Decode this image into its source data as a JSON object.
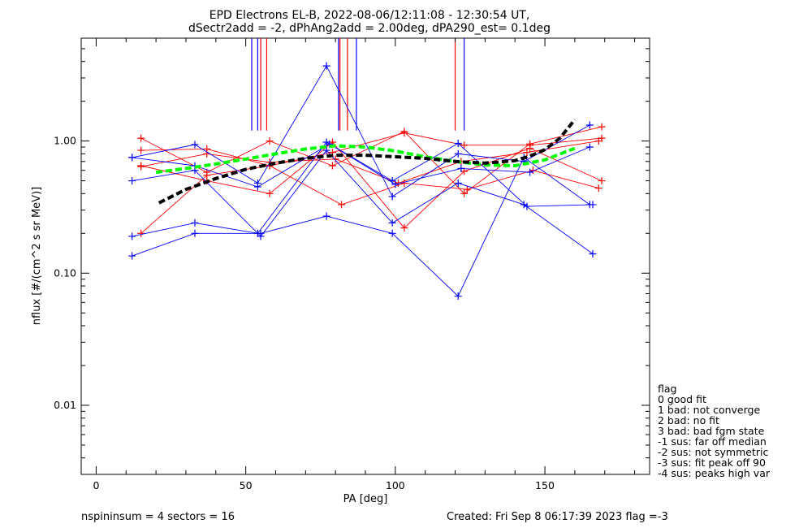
{
  "chart_data": {
    "type": "scatter",
    "title": "EPD Electrons EL-B, 2022-08-06/12:11:08 - 12:30:54 UT,",
    "subtitle": "dSectr2add = -2, dPhAng2add = 2.00deg, dPA290_est=   0.1deg",
    "xlabel": "PA [deg]",
    "ylabel": "nflux [#/(cm^2 s sr MeV)]",
    "xlim": [
      -5,
      185
    ],
    "ylim": [
      0.003,
      6.0
    ],
    "yscale": "log",
    "x_ticks": [
      0,
      50,
      100,
      150
    ],
    "x_tick_labels": [
      "0",
      "50",
      "100",
      "150"
    ],
    "y_ticks": [
      0.01,
      0.1,
      1.0
    ],
    "y_tick_labels": [
      "0.01",
      "0.10",
      "1.00"
    ],
    "colors": {
      "red": "#ff0000",
      "blue": "#0000ff",
      "green": "#00ff00",
      "black": "#000000"
    },
    "series": [
      {
        "color": "red",
        "style": "line-plus",
        "x": [
          15,
          37,
          58,
          79,
          103,
          123,
          145,
          169
        ],
        "y": [
          0.85,
          0.87,
          0.65,
          0.82,
          1.15,
          0.93,
          0.93,
          1.05
        ]
      },
      {
        "color": "red",
        "style": "line-plus",
        "x": [
          15,
          37,
          58,
          79,
          103,
          123,
          145,
          169
        ],
        "y": [
          1.05,
          0.58,
          1.0,
          0.65,
          1.18,
          0.4,
          0.95,
          1.28
        ]
      },
      {
        "color": "red",
        "style": "line-plus",
        "x": [
          15,
          37,
          58,
          79,
          103,
          123,
          145,
          169
        ],
        "y": [
          0.65,
          0.5,
          0.4,
          0.98,
          0.22,
          0.59,
          0.88,
          0.5
        ]
      },
      {
        "color": "red",
        "style": "line-plus",
        "x": [
          15,
          37,
          58,
          82,
          103,
          124,
          146,
          168
        ],
        "y": [
          0.2,
          0.55,
          0.65,
          0.33,
          0.48,
          0.43,
          0.6,
          0.44
        ]
      },
      {
        "color": "red",
        "style": "line-plus",
        "x": [
          15,
          37,
          58,
          80,
          101,
          122,
          144,
          168
        ],
        "y": [
          0.64,
          0.8,
          0.69,
          0.73,
          0.48,
          0.7,
          0.82,
          1.0
        ]
      },
      {
        "color": "blue",
        "style": "line-plus",
        "x": [
          12,
          33,
          54,
          77,
          99,
          121,
          143,
          165
        ],
        "y": [
          0.75,
          0.94,
          0.48,
          3.7,
          0.38,
          0.8,
          0.7,
          1.32
        ]
      },
      {
        "color": "blue",
        "style": "line-plus",
        "x": [
          12,
          33,
          55,
          77,
          99,
          121,
          143,
          166
        ],
        "y": [
          0.5,
          0.6,
          0.19,
          0.85,
          0.24,
          0.48,
          0.33,
          0.14
        ]
      },
      {
        "color": "blue",
        "style": "line-plus",
        "x": [
          12,
          33,
          54,
          77,
          99,
          121,
          144,
          166
        ],
        "y": [
          0.19,
          0.24,
          0.2,
          0.98,
          0.5,
          0.96,
          0.32,
          0.33
        ]
      },
      {
        "color": "blue",
        "style": "line-plus",
        "x": [
          12,
          33,
          55,
          77,
          99,
          121,
          143,
          165
        ],
        "y": [
          0.135,
          0.2,
          0.2,
          0.27,
          0.2,
          0.067,
          0.75,
          0.33
        ]
      },
      {
        "color": "blue",
        "style": "line-plus",
        "x": [
          12,
          33,
          54,
          78,
          100,
          122,
          145,
          165
        ],
        "y": [
          0.75,
          0.65,
          0.45,
          0.95,
          0.47,
          0.62,
          0.58,
          0.9
        ]
      }
    ],
    "fits": [
      {
        "color": "green",
        "style": "dashed-thick",
        "x": [
          20,
          30,
          40,
          50,
          60,
          70,
          80,
          90,
          100,
          110,
          120,
          130,
          140,
          150,
          160
        ],
        "y": [
          0.58,
          0.62,
          0.67,
          0.73,
          0.8,
          0.87,
          0.92,
          0.9,
          0.84,
          0.76,
          0.7,
          0.66,
          0.65,
          0.72,
          0.88
        ]
      },
      {
        "color": "black",
        "style": "dashed-thick",
        "x": [
          21,
          30,
          40,
          50,
          60,
          70,
          80,
          90,
          100,
          110,
          120,
          130,
          140,
          145,
          150,
          155,
          160
        ],
        "y": [
          0.34,
          0.43,
          0.52,
          0.61,
          0.68,
          0.74,
          0.78,
          0.78,
          0.76,
          0.74,
          0.7,
          0.68,
          0.71,
          0.77,
          0.86,
          1.05,
          1.45
        ]
      }
    ],
    "vertical_markers": [
      {
        "color": "blue",
        "x": 52
      },
      {
        "color": "blue",
        "x": 54
      },
      {
        "color": "red",
        "x": 55
      },
      {
        "color": "red",
        "x": 57
      },
      {
        "color": "blue",
        "x": 81
      },
      {
        "color": "red",
        "x": 81.5
      },
      {
        "color": "red",
        "x": 84
      },
      {
        "color": "blue",
        "x": 87
      },
      {
        "color": "red",
        "x": 120
      },
      {
        "color": "blue",
        "x": 123
      }
    ],
    "legend": {
      "title": "flag",
      "entries": [
        " 0 good fit",
        " 1 bad: not converge",
        " 2 bad: no fit",
        " 3 bad: bad fgm state",
        "-1 sus: far off median",
        "-2 sus: not symmetric",
        "-3 sus: fit peak off 90",
        "-4 sus: peaks high var"
      ],
      "placement": "right"
    },
    "grid": false
  },
  "footer": {
    "left": "nspininsum =  4  sectors = 16",
    "right": "Created: Fri Sep  8 06:17:39 2023   flag =-3"
  }
}
